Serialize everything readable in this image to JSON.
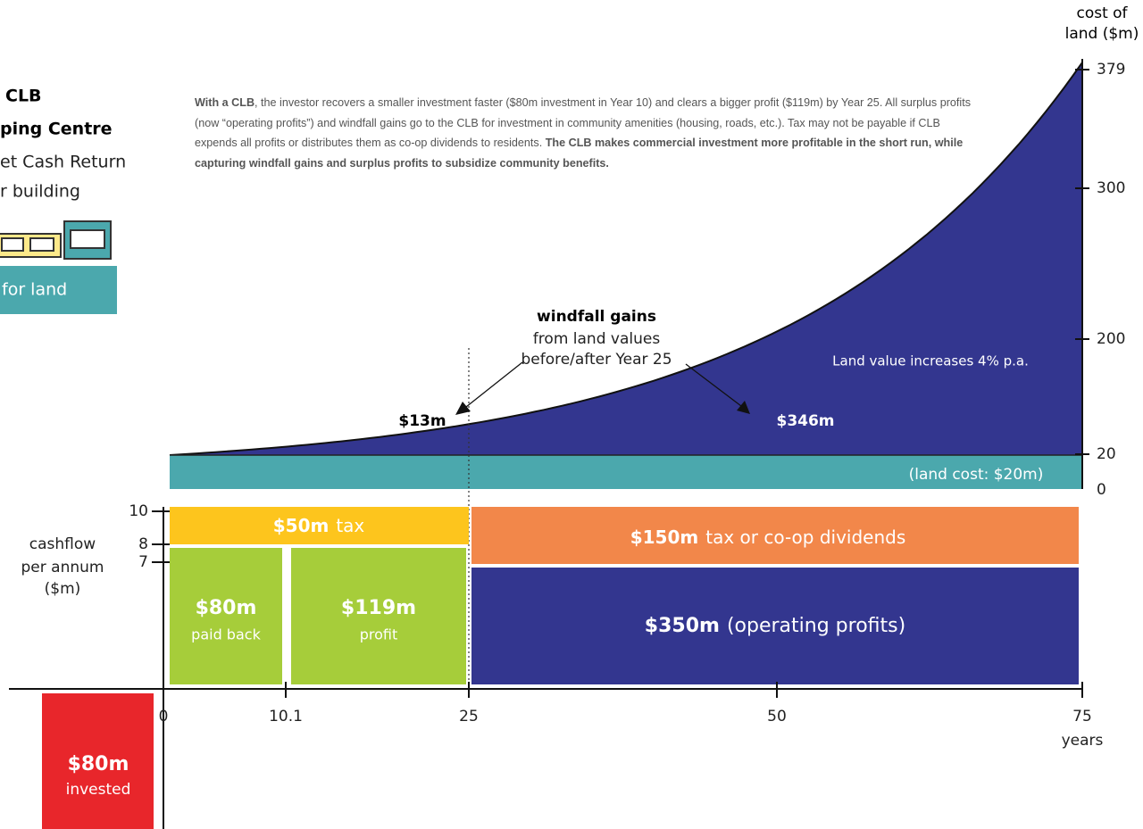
{
  "sidebar": {
    "title_lines": [
      "CLB",
      "ping Centre"
    ],
    "subtitle_lines": [
      "et Cash Return",
      "r building"
    ],
    "land_label": "for land"
  },
  "description": {
    "lead": "With a CLB",
    "body": ", the investor recovers a smaller investment faster ($80m investment in Year 10) and clears a bigger profit ($119m) by Year 25. All surplus profits (now “operating profits”) and windfall gains go to the CLB for investment in community amenities (housing, roads, etc.). Tax may not be payable if CLB expends all profits or distributes them as co-op dividends to residents. ",
    "conclusion": "The CLB makes commercial investment more profitable in the short run, while capturing windfall gains and surplus profits to subsidize community benefits."
  },
  "land_axis": {
    "title": [
      "cost of",
      "land ($m)"
    ],
    "ticks": [
      "379",
      "300",
      "200",
      "20",
      "0"
    ]
  },
  "annotations": {
    "windfall": [
      "windfall gains",
      "from land values",
      "before/after Year 25"
    ],
    "before": "$13m",
    "after": "$346m",
    "growth": "Land value increases 4% p.a.",
    "land_cost": "(land cost: $20m)"
  },
  "cashflow_axis": {
    "title": [
      "cashflow",
      "per annum",
      "($m)"
    ],
    "ticks": [
      "10",
      "8",
      "7"
    ]
  },
  "years_axis": {
    "ticks": [
      "0",
      "10.1",
      "25",
      "50",
      "75"
    ],
    "title": "years"
  },
  "blocks": [
    {
      "amount": "$50m",
      "label": "tax"
    },
    {
      "amount": "$80m",
      "label": "paid back"
    },
    {
      "amount": "$119m",
      "label": "profit"
    },
    {
      "amount": "$150m",
      "label": "tax or co-op dividends"
    },
    {
      "amount": "$350m",
      "label": "(operating profits)"
    },
    {
      "amount": "$80m",
      "label": "invested"
    }
  ]
}
